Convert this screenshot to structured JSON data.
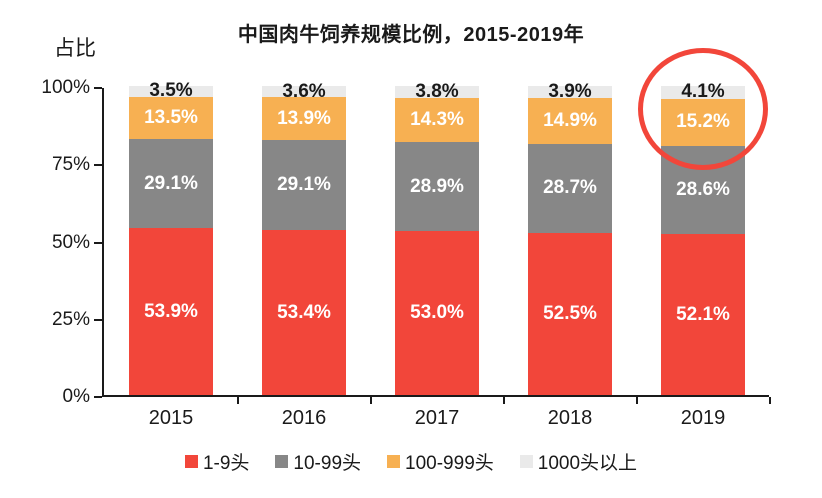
{
  "title": "中国肉牛饲养规模比例，2015-2019年",
  "y_axis_title": "占比",
  "chart_data": {
    "type": "bar",
    "stacked": true,
    "title": "中国肉牛饲养规模比例，2015-2019年",
    "ylabel": "占比",
    "ylim": [
      0,
      100
    ],
    "grid": false,
    "legend_position": "bottom",
    "categories": [
      "2015",
      "2016",
      "2017",
      "2018",
      "2019"
    ],
    "series": [
      {
        "name": "1-9头",
        "color": "#f2463a",
        "label_color": "#ffffff",
        "values": [
          53.9,
          53.4,
          53.0,
          52.5,
          52.1
        ]
      },
      {
        "name": "10-99头",
        "color": "#878787",
        "label_color": "#ffffff",
        "values": [
          29.1,
          29.1,
          28.9,
          28.7,
          28.6
        ]
      },
      {
        "name": "100-999头",
        "color": "#f7b052",
        "label_color": "#ffffff",
        "values": [
          13.5,
          13.9,
          14.3,
          14.9,
          15.2
        ]
      },
      {
        "name": "1000头以上",
        "color": "#eaeaea",
        "label_color": "#1a1a1a",
        "values": [
          3.5,
          3.6,
          3.8,
          3.9,
          4.1
        ]
      }
    ],
    "y_ticks": [
      {
        "label": "0%",
        "value": 0
      },
      {
        "label": "25%",
        "value": 25
      },
      {
        "label": "50%",
        "value": 50
      },
      {
        "label": "75%",
        "value": 75
      },
      {
        "label": "100%",
        "value": 100
      }
    ],
    "annotation": {
      "type": "circle",
      "target_category": "2019",
      "note": "highlights 100-999头 and 1000头以上 segments of 2019",
      "color": "#f2463a"
    }
  }
}
